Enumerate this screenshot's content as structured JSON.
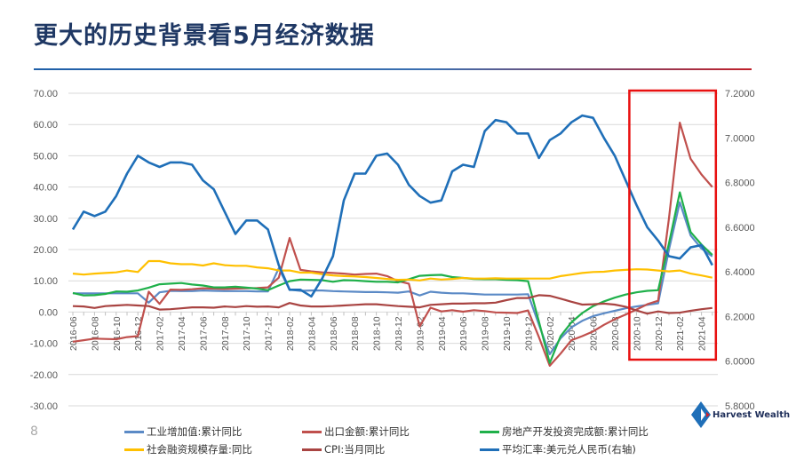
{
  "title": "更大的历史背景看5月经济数据",
  "page_number": "8",
  "logo": {
    "text": "Harvest Wealth"
  },
  "chart_data": {
    "type": "line",
    "title": "",
    "left_axis": {
      "ylim": [
        -30,
        70
      ],
      "ticks": [
        "70.00",
        "60.00",
        "50.00",
        "40.00",
        "30.00",
        "20.00",
        "10.00",
        "0.00",
        "-10.00",
        "-20.00",
        "-30.00"
      ],
      "tick_values": [
        70,
        60,
        50,
        40,
        30,
        20,
        10,
        0,
        -10,
        -20,
        -30
      ]
    },
    "right_axis": {
      "ylim": [
        5.8,
        7.2
      ],
      "ticks": [
        "7.2000",
        "7.0000",
        "6.8000",
        "6.6000",
        "6.4000",
        "6.2000",
        "6.0000",
        "5.8000"
      ],
      "tick_values": [
        7.2,
        7.0,
        6.8,
        6.6,
        6.4,
        6.2,
        6.0,
        5.8
      ]
    },
    "grid": true,
    "legend_position": "bottom",
    "x": [
      "2016-06",
      "2016-07",
      "2016-08",
      "2016-09",
      "2016-10",
      "2016-11",
      "2016-12",
      "2017-01",
      "2017-02",
      "2017-03",
      "2017-04",
      "2017-05",
      "2017-06",
      "2017-07",
      "2017-08",
      "2017-09",
      "2017-10",
      "2017-11",
      "2017-12",
      "2018-01",
      "2018-02",
      "2018-03",
      "2018-04",
      "2018-05",
      "2018-06",
      "2018-07",
      "2018-08",
      "2018-09",
      "2018-10",
      "2018-11",
      "2018-12",
      "2019-01",
      "2019-02",
      "2019-03",
      "2019-04",
      "2019-05",
      "2019-06",
      "2019-07",
      "2019-08",
      "2019-09",
      "2019-10",
      "2019-11",
      "2019-12",
      "2020-01",
      "2020-02",
      "2020-03",
      "2020-04",
      "2020-05",
      "2020-06",
      "2020-07",
      "2020-08",
      "2020-09",
      "2020-10",
      "2020-11",
      "2020-12",
      "2021-01",
      "2021-02",
      "2021-03",
      "2021-04",
      "2021-05"
    ],
    "x_tick_labels": [
      "2016-06",
      "2016-08",
      "2016-10",
      "2016-12",
      "2017-02",
      "2017-04",
      "2017-06",
      "2017-08",
      "2017-10",
      "2017-12",
      "2018-02",
      "2018-04",
      "2018-06",
      "2018-08",
      "2018-10",
      "2018-12",
      "2019-02",
      "2019-04",
      "2019-06",
      "2019-08",
      "2019-10",
      "2019-12",
      "2020-02",
      "2020-04",
      "2020-06",
      "2020-08",
      "2020-10",
      "2020-12",
      "2021-02",
      "2021-04"
    ],
    "highlight": {
      "from": "2020-10",
      "to": "2021-05",
      "color": "#e81010"
    },
    "series": [
      {
        "name": "工业增加值:累计同比",
        "axis": "left",
        "color": "#5b8ac6",
        "values": [
          6.0,
          6.0,
          6.0,
          6.0,
          6.0,
          6.0,
          6.0,
          3.0,
          6.3,
          6.8,
          6.7,
          6.7,
          6.9,
          6.8,
          6.7,
          6.7,
          6.7,
          6.6,
          6.6,
          14.0,
          7.2,
          6.8,
          6.9,
          6.9,
          6.7,
          6.6,
          6.5,
          6.4,
          6.4,
          6.3,
          6.2,
          6.6,
          5.3,
          6.5,
          6.2,
          6.0,
          6.0,
          5.8,
          5.6,
          5.6,
          5.6,
          5.6,
          5.7,
          -4.0,
          -13.5,
          -8.4,
          -4.9,
          -2.8,
          -1.3,
          -0.4,
          0.4,
          1.2,
          1.8,
          2.3,
          2.8,
          20.0,
          35.1,
          24.5,
          20.3,
          17.8
        ]
      },
      {
        "name": "出口金额:累计同比",
        "axis": "left",
        "color": "#c0504d",
        "values": [
          -9.5,
          -9.0,
          -8.5,
          -8.6,
          -8.7,
          -8.0,
          -7.7,
          6.5,
          2.6,
          7.2,
          7.1,
          7.3,
          7.6,
          7.5,
          7.4,
          7.5,
          7.6,
          7.7,
          7.9,
          11.0,
          23.7,
          13.5,
          13.0,
          12.7,
          12.5,
          12.3,
          12.0,
          12.2,
          12.3,
          11.5,
          9.9,
          9.1,
          -4.6,
          1.4,
          0.2,
          0.6,
          0.1,
          0.6,
          0.3,
          -0.1,
          -0.2,
          -0.3,
          0.5,
          -8.0,
          -17.2,
          -13.3,
          -9.0,
          -7.7,
          -6.2,
          -4.1,
          -2.3,
          -0.8,
          0.8,
          2.5,
          3.6,
          30.0,
          60.6,
          49.0,
          44.0,
          40.0
        ]
      },
      {
        "name": "房地产开发投资完成额:累计同比",
        "axis": "left",
        "color": "#1fb04a",
        "values": [
          6.1,
          5.3,
          5.4,
          5.8,
          6.6,
          6.5,
          6.9,
          7.8,
          8.9,
          9.1,
          9.3,
          8.8,
          8.5,
          7.9,
          7.9,
          8.1,
          7.8,
          7.5,
          7.0,
          8.5,
          9.9,
          10.4,
          10.3,
          10.2,
          9.7,
          10.2,
          10.1,
          9.9,
          9.7,
          9.7,
          9.5,
          10.5,
          11.6,
          11.8,
          11.9,
          11.2,
          10.9,
          10.6,
          10.5,
          10.5,
          10.3,
          10.2,
          9.9,
          -3.0,
          -16.3,
          -7.7,
          -3.3,
          -0.3,
          1.9,
          3.4,
          4.6,
          5.6,
          6.3,
          6.8,
          7.0,
          22.0,
          38.3,
          25.6,
          21.6,
          18.3
        ]
      },
      {
        "name": "社会融资规模存量:同比",
        "axis": "left",
        "color": "#ffc000",
        "values": [
          12.3,
          12.0,
          12.3,
          12.5,
          12.7,
          13.3,
          12.8,
          16.3,
          16.3,
          15.6,
          15.3,
          15.3,
          14.9,
          15.6,
          15.0,
          14.8,
          14.8,
          14.3,
          14.0,
          13.3,
          13.3,
          12.6,
          12.6,
          12.1,
          11.7,
          11.5,
          11.4,
          11.2,
          10.9,
          10.6,
          10.3,
          10.4,
          10.1,
          10.7,
          10.4,
          10.6,
          10.9,
          10.7,
          10.7,
          10.8,
          10.7,
          10.7,
          10.7,
          10.7,
          10.7,
          11.5,
          12.0,
          12.5,
          12.8,
          12.9,
          13.3,
          13.5,
          13.7,
          13.6,
          13.3,
          13.0,
          13.3,
          12.3,
          11.7,
          11.0
        ]
      },
      {
        "name": "CPI:当月同比",
        "axis": "left",
        "color": "#a94442",
        "values": [
          1.9,
          1.8,
          1.3,
          1.9,
          2.1,
          2.3,
          2.1,
          1.9,
          0.8,
          0.9,
          1.2,
          1.5,
          1.5,
          1.4,
          1.8,
          1.6,
          1.9,
          1.7,
          1.8,
          1.5,
          2.9,
          2.1,
          1.8,
          1.8,
          1.9,
          2.1,
          2.3,
          2.5,
          2.5,
          2.2,
          1.9,
          1.7,
          1.5,
          2.3,
          2.5,
          2.7,
          2.7,
          2.8,
          2.8,
          3.0,
          3.8,
          4.5,
          4.5,
          5.4,
          5.2,
          4.3,
          3.3,
          2.4,
          2.5,
          2.7,
          2.4,
          1.7,
          0.5,
          -0.5,
          0.2,
          -0.3,
          -0.2,
          0.4,
          0.9,
          1.3
        ]
      },
      {
        "name": "平均汇率:美元兑人民币(右轴)",
        "axis": "right",
        "color": "#1f6fb8",
        "values": [
          6.59,
          6.67,
          6.65,
          6.67,
          6.74,
          6.84,
          6.92,
          6.89,
          6.87,
          6.89,
          6.89,
          6.88,
          6.81,
          6.77,
          6.67,
          6.57,
          6.63,
          6.63,
          6.59,
          6.43,
          6.32,
          6.32,
          6.29,
          6.37,
          6.47,
          6.72,
          6.84,
          6.84,
          6.92,
          6.93,
          6.88,
          6.79,
          6.74,
          6.71,
          6.72,
          6.85,
          6.88,
          6.87,
          7.03,
          7.08,
          7.07,
          7.02,
          7.02,
          6.91,
          6.99,
          7.02,
          7.07,
          7.1,
          7.09,
          7.0,
          6.92,
          6.81,
          6.7,
          6.6,
          6.54,
          6.47,
          6.46,
          6.51,
          6.52,
          6.43
        ]
      }
    ]
  }
}
